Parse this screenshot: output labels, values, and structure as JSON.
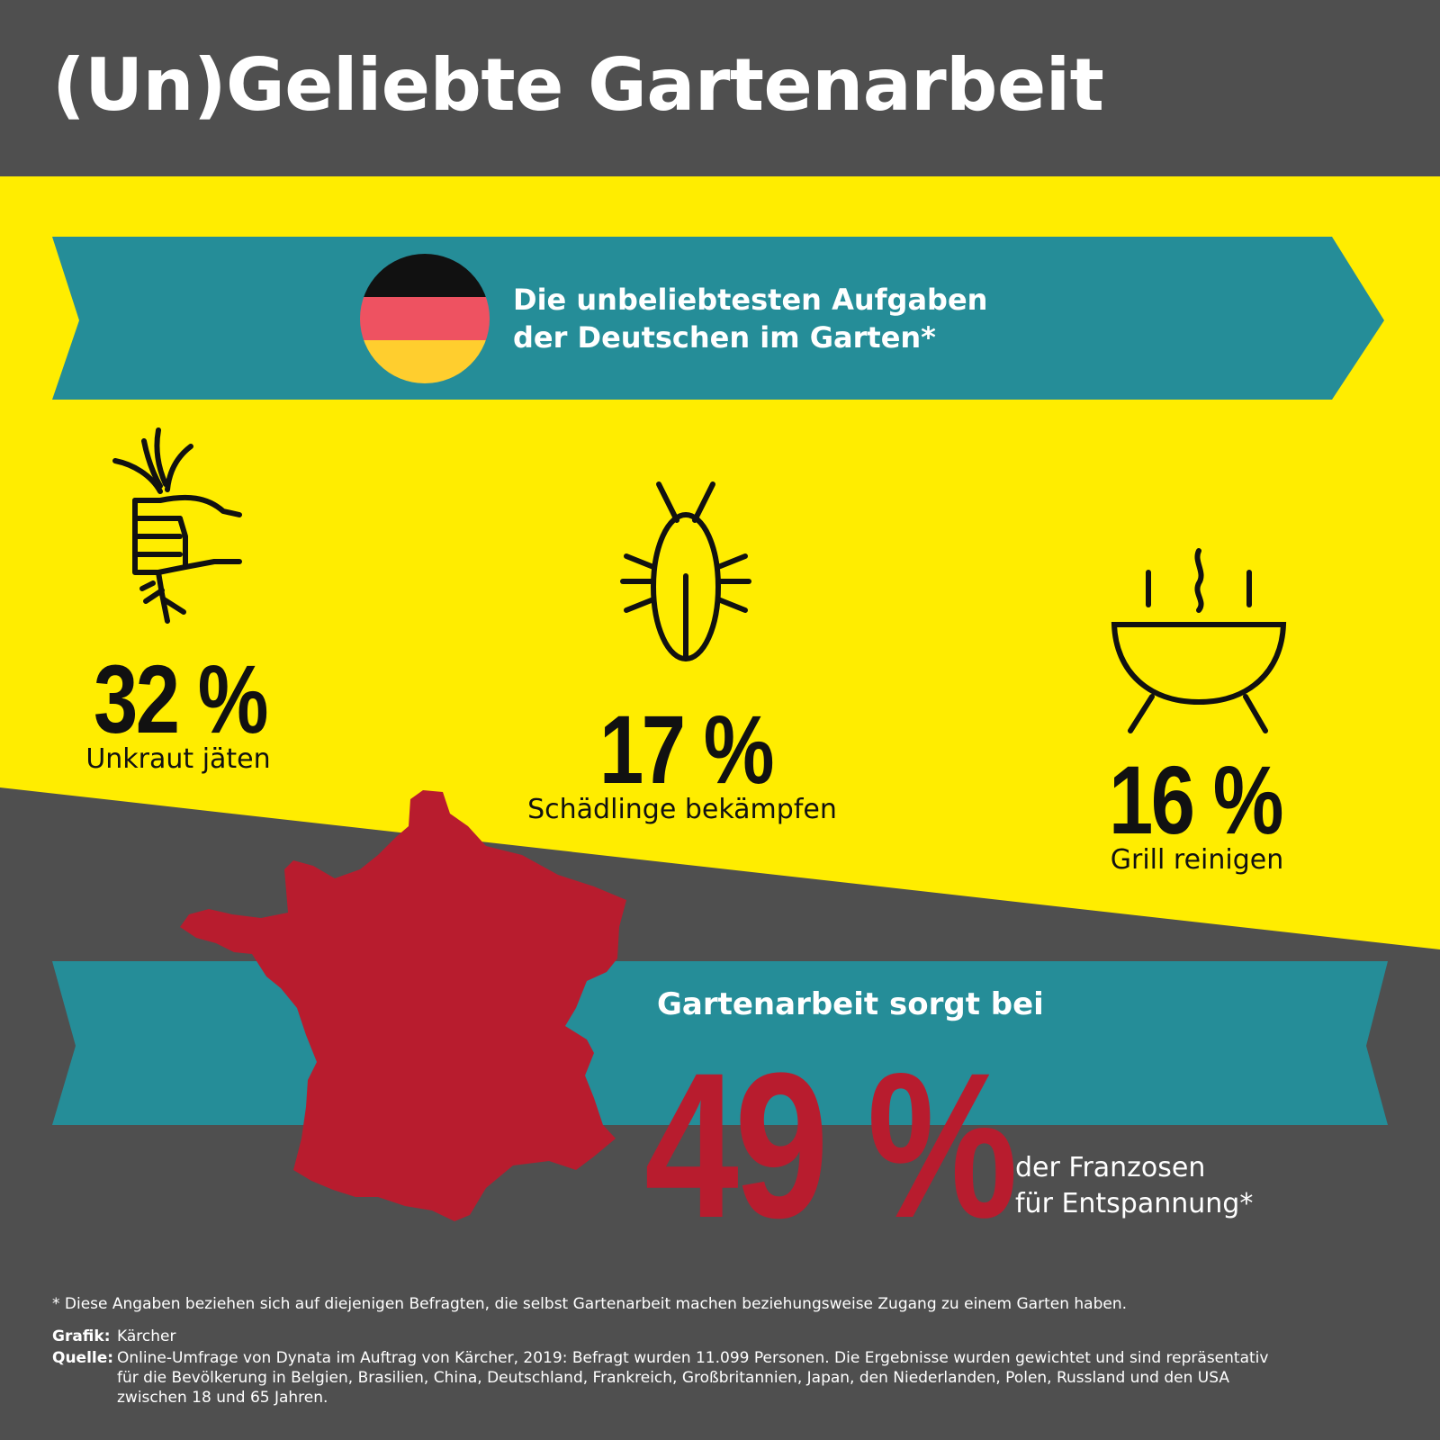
{
  "title": "(Un)Geliebte Gartenarbeit",
  "germany": {
    "heading_line1": "Die unbeliebtesten Aufgaben",
    "heading_line2": "der Deutschen im Garten*",
    "items": [
      {
        "value": "32 %",
        "label": "Unkraut jäten",
        "icon": "weed-hand-icon"
      },
      {
        "value": "17 %",
        "label": "Schädlinge bekämpfen",
        "icon": "bug-icon"
      },
      {
        "value": "16 %",
        "label": "Grill reinigen",
        "icon": "grill-icon"
      }
    ]
  },
  "france": {
    "heading": "Gartenarbeit sorgt bei",
    "value": "49 %",
    "sub_line1": "der Franzosen",
    "sub_line2": "für Entspannung*"
  },
  "footer": {
    "note": "* Diese Angaben beziehen sich auf diejenigen Befragten, die selbst Gartenarbeit machen beziehungsweise Zugang zu einem Garten haben.",
    "grafik_label": "Grafik:",
    "grafik_value": "Kärcher",
    "quelle_label": "Quelle:",
    "quelle_line1": "Online-Umfrage von Dynata im Auftrag von Kärcher, 2019: Befragt wurden 11.099 Personen. Die Ergebnisse wurden gewichtet und sind repräsentativ",
    "quelle_line2": "für die Bevölkerung in Belgien, Brasilien, China, Deutschland, Frankreich, Großbritannien, Japan, den Niederlanden, Polen, Russland und den USA",
    "quelle_line3": "zwischen 18 und 65 Jahren."
  },
  "colors": {
    "dark": "#4f4f4f",
    "yellow": "#ffed00",
    "teal": "#258d98",
    "red": "#b81c2e",
    "flag_black": "#111111",
    "flag_red": "#ee5261",
    "flag_gold": "#ffce2e"
  }
}
